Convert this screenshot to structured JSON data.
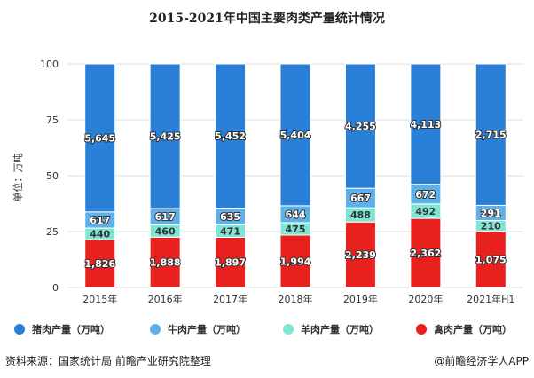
{
  "chart_data": {
    "type": "bar",
    "stacked": "percent",
    "title": "2015-2021年中国主要肉类产量统计情况",
    "ylabel": "单位：万吨",
    "xlabel": "",
    "ylim": [
      0,
      100
    ],
    "yticks": [
      "0",
      "25",
      "50",
      "75",
      "100"
    ],
    "categories": [
      "2015年",
      "2016年",
      "2017年",
      "2018年",
      "2019年",
      "2020年",
      "2021年H1"
    ],
    "series": [
      {
        "name": "禽肉产量（万吨）",
        "color": "#e8201e",
        "values": [
          1826,
          1888,
          1897,
          1994,
          2239,
          2362,
          1075
        ],
        "labels": [
          "1,826",
          "1,888",
          "1,897",
          "1,994",
          "2,239",
          "2,362",
          "1,075"
        ]
      },
      {
        "name": "羊肉产量（万吨）",
        "color": "#80e6d4",
        "values": [
          440,
          460,
          471,
          475,
          488,
          492,
          210
        ],
        "labels": [
          "440",
          "460",
          "471",
          "475",
          "488",
          "492",
          "210"
        ]
      },
      {
        "name": "牛肉产量（万吨）",
        "color": "#5eb0ea",
        "values": [
          617,
          617,
          635,
          644,
          667,
          672,
          291
        ],
        "labels": [
          "617",
          "617",
          "635",
          "644",
          "667",
          "672",
          "291"
        ]
      },
      {
        "name": "猪肉产量（万吨）",
        "color": "#2a7fd6",
        "values": [
          5645,
          5425,
          5452,
          5404,
          4255,
          4113,
          2715
        ],
        "labels": [
          "5,645",
          "5,425",
          "5,452",
          "5,404",
          "4,255",
          "4,113",
          "2,715"
        ]
      }
    ],
    "legend": [
      "猪肉产量（万吨）",
      "牛肉产量（万吨）",
      "羊肉产量（万吨）",
      "禽肉产量（万吨）"
    ],
    "legend_position": "bottom",
    "grid": true
  },
  "footer": {
    "source": "资料来源：国家统计局 前瞻产业研究院整理",
    "brand": "@前瞻经济学人APP"
  }
}
